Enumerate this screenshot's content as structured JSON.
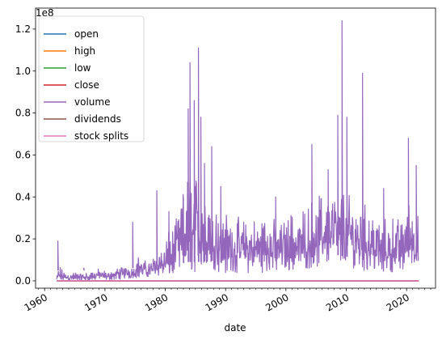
{
  "chart_data": {
    "type": "line",
    "title": "",
    "xlabel": "date",
    "ylabel": "",
    "y_offset_text": "1e8",
    "xlim": [
      1958.5,
      2024.8
    ],
    "ylim": [
      -0.035,
      1.3
    ],
    "y_scale": 100000000,
    "x_ticks": [
      1960,
      1970,
      1980,
      1990,
      2000,
      2010,
      2020
    ],
    "x_tick_labels": [
      "1960",
      "1970",
      "1980",
      "1990",
      "2000",
      "2010",
      "2020"
    ],
    "y_ticks": [
      0.0,
      0.2,
      0.4,
      0.6,
      0.8,
      1.0,
      1.2
    ],
    "y_tick_labels": [
      "0.0",
      "0.2",
      "0.4",
      "0.6",
      "0.8",
      "1.0",
      "1.2"
    ],
    "grid": false,
    "legend_position": "upper-left",
    "series": [
      {
        "name": "open",
        "color": "#1f77b4",
        "x": [
          1962.0,
          2022.0
        ],
        "values": [
          0,
          0
        ]
      },
      {
        "name": "high",
        "color": "#ff7f0e",
        "x": [
          1962.0,
          2022.0
        ],
        "values": [
          0,
          0
        ]
      },
      {
        "name": "low",
        "color": "#2ca02c",
        "x": [
          1962.0,
          2022.0
        ],
        "values": [
          0,
          0
        ]
      },
      {
        "name": "close",
        "color": "#d62728",
        "x": [
          1962.0,
          2022.0
        ],
        "values": [
          0,
          0
        ]
      },
      {
        "name": "volume",
        "color": "#9467bd",
        "envelope": {
          "x": [
            1962.0,
            1962.3,
            1963.0,
            1964.0,
            1965.5,
            1967.0,
            1968.5,
            1970.0,
            1971.5,
            1973.0,
            1974.5,
            1975.5,
            1977.0,
            1978.5,
            1979.5,
            1980.5,
            1981.5,
            1982.5,
            1983.5,
            1984.2,
            1985.0,
            1986.0,
            1987.0,
            1988.0,
            1989.0,
            1990.0,
            1991.0,
            1992.0,
            1993.0,
            1994.0,
            1995.0,
            1996.0,
            1997.0,
            1998.0,
            1999.0,
            2000.0,
            2001.0,
            2002.0,
            2003.0,
            2004.0,
            2005.0,
            2006.0,
            2007.0,
            2008.0,
            2009.0,
            2010.0,
            2011.0,
            2012.0,
            2013.0,
            2014.0,
            2015.0,
            2016.0,
            2017.0,
            2018.0,
            2019.0,
            2020.0,
            2021.0,
            2022.0
          ],
          "high": [
            0.02,
            0.08,
            0.05,
            0.035,
            0.05,
            0.04,
            0.06,
            0.05,
            0.06,
            0.07,
            0.08,
            0.12,
            0.09,
            0.14,
            0.18,
            0.23,
            0.27,
            0.36,
            0.5,
            0.55,
            0.5,
            0.55,
            0.48,
            0.4,
            0.36,
            0.34,
            0.33,
            0.31,
            0.3,
            0.32,
            0.29,
            0.33,
            0.31,
            0.3,
            0.28,
            0.3,
            0.34,
            0.33,
            0.34,
            0.38,
            0.42,
            0.43,
            0.45,
            0.47,
            0.46,
            0.44,
            0.43,
            0.4,
            0.38,
            0.36,
            0.34,
            0.31,
            0.29,
            0.32,
            0.3,
            0.36,
            0.4,
            0.3
          ],
          "low": [
            0.0,
            0.0,
            0.0,
            0.0,
            0.0,
            0.0,
            0.005,
            0.005,
            0.005,
            0.01,
            0.01,
            0.015,
            0.02,
            0.02,
            0.02,
            0.025,
            0.03,
            0.03,
            0.04,
            0.04,
            0.04,
            0.04,
            0.045,
            0.045,
            0.04,
            0.035,
            0.035,
            0.035,
            0.035,
            0.035,
            0.04,
            0.04,
            0.04,
            0.045,
            0.04,
            0.04,
            0.05,
            0.055,
            0.055,
            0.06,
            0.065,
            0.07,
            0.075,
            0.075,
            0.07,
            0.065,
            0.06,
            0.055,
            0.05,
            0.045,
            0.045,
            0.045,
            0.04,
            0.045,
            0.05,
            0.06,
            0.07,
            0.07
          ]
        },
        "peaks": [
          {
            "x": 1962.2,
            "value": 0.19
          },
          {
            "x": 1966.5,
            "value": 0.06
          },
          {
            "x": 1974.6,
            "value": 0.28
          },
          {
            "x": 1978.6,
            "value": 0.43
          },
          {
            "x": 1980.6,
            "value": 0.33
          },
          {
            "x": 1983.0,
            "value": 0.4
          },
          {
            "x": 1983.8,
            "value": 0.82
          },
          {
            "x": 1984.1,
            "value": 1.04
          },
          {
            "x": 1984.8,
            "value": 0.86
          },
          {
            "x": 1985.5,
            "value": 1.11
          },
          {
            "x": 1985.9,
            "value": 0.78
          },
          {
            "x": 1986.5,
            "value": 0.56
          },
          {
            "x": 1987.7,
            "value": 0.64
          },
          {
            "x": 1989.2,
            "value": 0.45
          },
          {
            "x": 1998.3,
            "value": 0.4
          },
          {
            "x": 2004.3,
            "value": 0.65
          },
          {
            "x": 2007.0,
            "value": 0.53
          },
          {
            "x": 2008.6,
            "value": 0.79
          },
          {
            "x": 2009.3,
            "value": 1.24
          },
          {
            "x": 2010.1,
            "value": 0.78
          },
          {
            "x": 2012.7,
            "value": 0.99
          },
          {
            "x": 2016.2,
            "value": 0.44
          },
          {
            "x": 2020.3,
            "value": 0.68
          },
          {
            "x": 2021.6,
            "value": 0.55
          }
        ]
      },
      {
        "name": "dividends",
        "color": "#8c564b",
        "x": [
          1962.0,
          2022.0
        ],
        "values": [
          0,
          0
        ]
      },
      {
        "name": "stock splits",
        "color": "#e377c2",
        "x": [
          1962.0,
          2022.0
        ],
        "values": [
          0,
          0
        ]
      }
    ]
  }
}
